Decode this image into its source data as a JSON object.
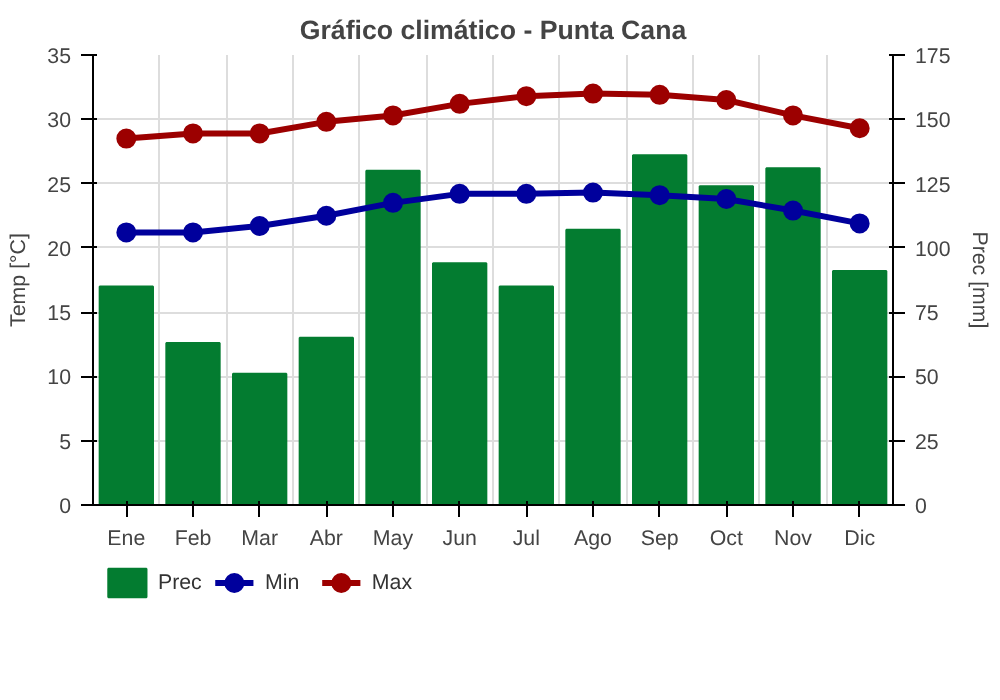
{
  "chart_data": {
    "type": "bar",
    "title": "Gráfico climático - Punta Cana",
    "ylabel": "Temp [°C]",
    "y2label": "Prec [mm]",
    "categories": [
      "Ene",
      "Feb",
      "Mar",
      "Abr",
      "May",
      "Jun",
      "Jul",
      "Ago",
      "Sep",
      "Oct",
      "Nov",
      "Dic"
    ],
    "series": [
      {
        "name": "Prec",
        "axis": "y2",
        "color": "#037c30",
        "values": [
          85,
          63,
          51,
          65,
          130,
          94,
          85,
          107,
          136,
          124,
          131,
          91
        ]
      },
      {
        "name": "Min",
        "type": "line",
        "color": "#00009c",
        "values": [
          21.2,
          21.2,
          21.7,
          22.5,
          23.5,
          24.2,
          24.2,
          24.3,
          24.1,
          23.8,
          22.9,
          21.9
        ]
      },
      {
        "name": "Max",
        "type": "line",
        "color": "#9c0000",
        "values": [
          28.5,
          28.9,
          28.9,
          29.8,
          30.3,
          31.2,
          31.8,
          32.0,
          31.9,
          31.5,
          30.3,
          29.3
        ]
      }
    ],
    "ylim": [
      0,
      35
    ],
    "yticks": [
      0,
      5,
      10,
      15,
      20,
      25,
      30,
      35
    ],
    "y2lim": [
      0,
      175
    ],
    "y2ticks": [
      0,
      25,
      50,
      75,
      100,
      125,
      150,
      175
    ],
    "grid": true,
    "legend": "bottom",
    "marker": "circle",
    "line_style": "solid"
  }
}
